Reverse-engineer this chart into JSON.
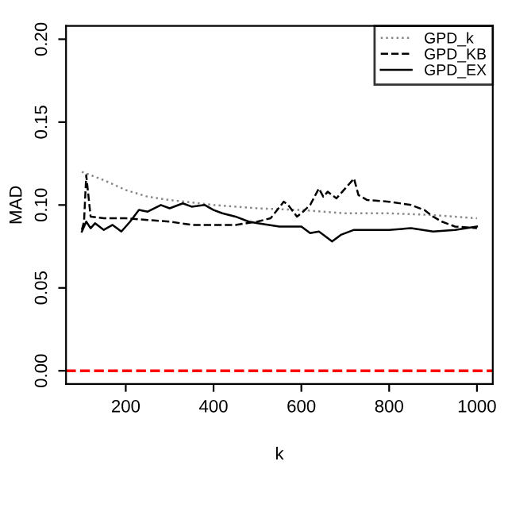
{
  "chart_data": {
    "type": "line",
    "xlabel": "k",
    "ylabel": "MAD",
    "xlim": [
      64,
      1036
    ],
    "ylim": [
      -0.008,
      0.208
    ],
    "xticks": [
      200,
      400,
      600,
      800,
      1000
    ],
    "yticks": [
      {
        "value": 0,
        "label": "0.00"
      },
      {
        "value": 0.05,
        "label": "0.05"
      },
      {
        "value": 0.1,
        "label": "0.10"
      },
      {
        "value": 0.15,
        "label": "0.15"
      },
      {
        "value": 0.2,
        "label": "0.20"
      }
    ],
    "grid": false,
    "legend": "top right",
    "series": [
      {
        "name": "GPD_k",
        "color": "#888888",
        "line_style": "dotted",
        "x": [
          100,
          150,
          200,
          250,
          300,
          400,
          500,
          600,
          700,
          800,
          900,
          1000
        ],
        "values": [
          0.12,
          0.115,
          0.109,
          0.105,
          0.103,
          0.1,
          0.098,
          0.097,
          0.095,
          0.095,
          0.094,
          0.092
        ]
      },
      {
        "name": "GPD_KB",
        "color": "#000000",
        "line_style": "dashed",
        "x": [
          100,
          105,
          110,
          120,
          150,
          200,
          250,
          300,
          350,
          400,
          450,
          500,
          530,
          560,
          570,
          590,
          600,
          620,
          640,
          650,
          660,
          680,
          700,
          720,
          730,
          750,
          800,
          850,
          880,
          900,
          920,
          950,
          1000
        ],
        "values": [
          0.085,
          0.09,
          0.118,
          0.093,
          0.092,
          0.092,
          0.091,
          0.09,
          0.088,
          0.088,
          0.088,
          0.09,
          0.092,
          0.102,
          0.1,
          0.093,
          0.095,
          0.1,
          0.11,
          0.105,
          0.108,
          0.104,
          0.11,
          0.116,
          0.106,
          0.103,
          0.102,
          0.1,
          0.097,
          0.093,
          0.09,
          0.087,
          0.086
        ]
      },
      {
        "name": "GPD_EX",
        "color": "#000000",
        "line_style": "solid",
        "x": [
          100,
          110,
          120,
          130,
          150,
          170,
          190,
          210,
          230,
          250,
          280,
          300,
          330,
          350,
          380,
          400,
          420,
          450,
          480,
          500,
          550,
          600,
          620,
          640,
          660,
          670,
          690,
          720,
          750,
          800,
          850,
          900,
          950,
          1000
        ],
        "values": [
          0.084,
          0.09,
          0.086,
          0.089,
          0.085,
          0.088,
          0.084,
          0.09,
          0.097,
          0.096,
          0.1,
          0.098,
          0.101,
          0.099,
          0.1,
          0.097,
          0.095,
          0.093,
          0.09,
          0.089,
          0.087,
          0.087,
          0.083,
          0.084,
          0.08,
          0.078,
          0.082,
          0.085,
          0.085,
          0.085,
          0.086,
          0.084,
          0.085,
          0.087
        ]
      }
    ],
    "ref_lines": [
      {
        "axis": "y",
        "value": 0,
        "label": null,
        "color": "#ff0000",
        "line_style": "dashed"
      }
    ]
  }
}
